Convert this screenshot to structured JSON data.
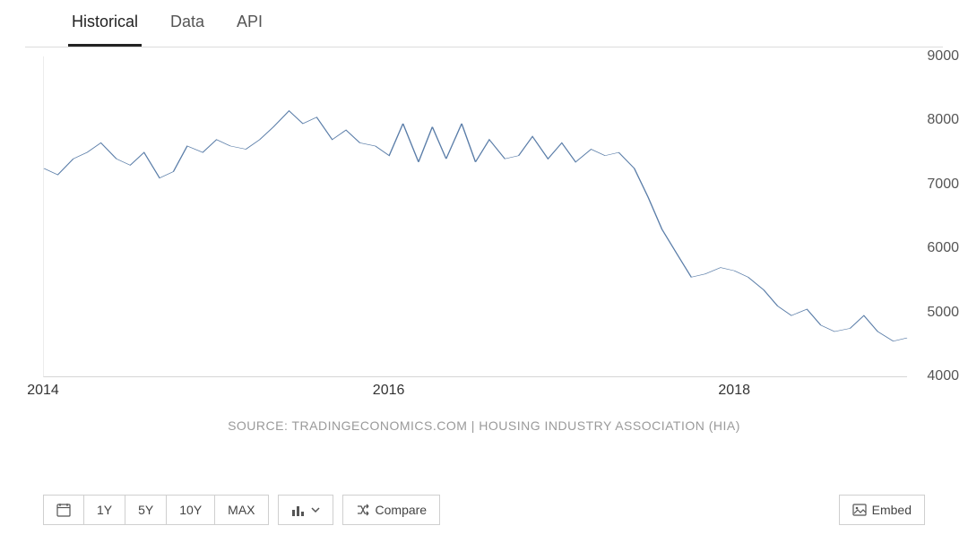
{
  "tabs": [
    {
      "id": "historical",
      "label": "Historical",
      "active": true
    },
    {
      "id": "data",
      "label": "Data",
      "active": false
    },
    {
      "id": "api",
      "label": "API",
      "active": false
    }
  ],
  "chart": {
    "type": "line",
    "line_color": "#5a7da8",
    "line_width": 1.5,
    "background_color": "#ffffff",
    "grid_color": "#ececec",
    "ylim": [
      4000,
      9000
    ],
    "yticks": [
      4000,
      5000,
      6000,
      7000,
      8000,
      9000
    ],
    "xlim": [
      2014.0,
      2019.0
    ],
    "xticks": [
      {
        "pos": 2014.0,
        "label": "2014"
      },
      {
        "pos": 2016.0,
        "label": "2016"
      },
      {
        "pos": 2018.0,
        "label": "2018"
      }
    ],
    "label_fontsize": 16,
    "label_color": "#555555",
    "series": [
      {
        "x": 2014.0,
        "y": 7250
      },
      {
        "x": 2014.08,
        "y": 7150
      },
      {
        "x": 2014.17,
        "y": 7400
      },
      {
        "x": 2014.25,
        "y": 7500
      },
      {
        "x": 2014.33,
        "y": 7650
      },
      {
        "x": 2014.42,
        "y": 7400
      },
      {
        "x": 2014.5,
        "y": 7300
      },
      {
        "x": 2014.58,
        "y": 7500
      },
      {
        "x": 2014.67,
        "y": 7100
      },
      {
        "x": 2014.75,
        "y": 7200
      },
      {
        "x": 2014.83,
        "y": 7600
      },
      {
        "x": 2014.92,
        "y": 7500
      },
      {
        "x": 2015.0,
        "y": 7700
      },
      {
        "x": 2015.08,
        "y": 7600
      },
      {
        "x": 2015.17,
        "y": 7550
      },
      {
        "x": 2015.25,
        "y": 7700
      },
      {
        "x": 2015.33,
        "y": 7900
      },
      {
        "x": 2015.42,
        "y": 8150
      },
      {
        "x": 2015.5,
        "y": 7950
      },
      {
        "x": 2015.58,
        "y": 8050
      },
      {
        "x": 2015.67,
        "y": 7700
      },
      {
        "x": 2015.75,
        "y": 7850
      },
      {
        "x": 2015.83,
        "y": 7650
      },
      {
        "x": 2015.92,
        "y": 7600
      },
      {
        "x": 2016.0,
        "y": 7450
      },
      {
        "x": 2016.08,
        "y": 7950
      },
      {
        "x": 2016.17,
        "y": 7350
      },
      {
        "x": 2016.25,
        "y": 7900
      },
      {
        "x": 2016.33,
        "y": 7400
      },
      {
        "x": 2016.42,
        "y": 7950
      },
      {
        "x": 2016.5,
        "y": 7350
      },
      {
        "x": 2016.58,
        "y": 7700
      },
      {
        "x": 2016.67,
        "y": 7400
      },
      {
        "x": 2016.75,
        "y": 7450
      },
      {
        "x": 2016.83,
        "y": 7750
      },
      {
        "x": 2016.92,
        "y": 7400
      },
      {
        "x": 2017.0,
        "y": 7650
      },
      {
        "x": 2017.08,
        "y": 7350
      },
      {
        "x": 2017.17,
        "y": 7550
      },
      {
        "x": 2017.25,
        "y": 7450
      },
      {
        "x": 2017.33,
        "y": 7500
      },
      {
        "x": 2017.42,
        "y": 7250
      },
      {
        "x": 2017.5,
        "y": 6800
      },
      {
        "x": 2017.58,
        "y": 6300
      },
      {
        "x": 2017.67,
        "y": 5900
      },
      {
        "x": 2017.75,
        "y": 5550
      },
      {
        "x": 2017.83,
        "y": 5600
      },
      {
        "x": 2017.92,
        "y": 5700
      },
      {
        "x": 2018.0,
        "y": 5650
      },
      {
        "x": 2018.08,
        "y": 5550
      },
      {
        "x": 2018.17,
        "y": 5350
      },
      {
        "x": 2018.25,
        "y": 5100
      },
      {
        "x": 2018.33,
        "y": 4950
      },
      {
        "x": 2018.42,
        "y": 5050
      },
      {
        "x": 2018.5,
        "y": 4800
      },
      {
        "x": 2018.58,
        "y": 4700
      },
      {
        "x": 2018.67,
        "y": 4750
      },
      {
        "x": 2018.75,
        "y": 4950
      },
      {
        "x": 2018.83,
        "y": 4700
      },
      {
        "x": 2018.92,
        "y": 4550
      },
      {
        "x": 2019.0,
        "y": 4600
      }
    ]
  },
  "source": "SOURCE: TRADINGECONOMICS.COM | HOUSING INDUSTRY ASSOCIATION (HIA)",
  "toolbar": {
    "ranges": [
      "1Y",
      "5Y",
      "10Y",
      "MAX"
    ],
    "compare_label": "Compare",
    "embed_label": "Embed"
  }
}
